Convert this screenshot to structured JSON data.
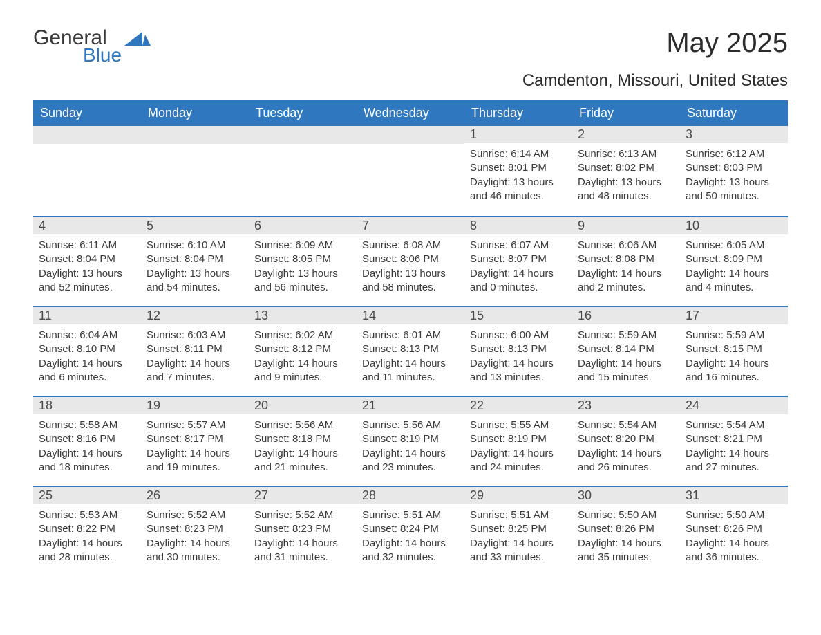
{
  "logo": {
    "general": "General",
    "blue": "Blue",
    "accent_color": "#2f78bf"
  },
  "title": "May 2025",
  "location": "Camdenton, Missouri, United States",
  "colors": {
    "header_bg": "#2f78bf",
    "header_text": "#ffffff",
    "daynum_bg": "#e8e8e8",
    "daynum_text": "#4a4a4a",
    "body_text": "#3a3a3a",
    "week_divider": "#2f78bf",
    "page_bg": "#ffffff"
  },
  "layout": {
    "columns": 7,
    "rows": 5,
    "start_weekday_index": 4
  },
  "weekdays": [
    "Sunday",
    "Monday",
    "Tuesday",
    "Wednesday",
    "Thursday",
    "Friday",
    "Saturday"
  ],
  "typography": {
    "month_title_fontsize": 40,
    "location_fontsize": 24,
    "weekday_fontsize": 18,
    "daynum_fontsize": 18,
    "body_fontsize": 15
  },
  "days": [
    {
      "n": 1,
      "sunrise": "6:14 AM",
      "sunset": "8:01 PM",
      "daylight": "13 hours and 46 minutes."
    },
    {
      "n": 2,
      "sunrise": "6:13 AM",
      "sunset": "8:02 PM",
      "daylight": "13 hours and 48 minutes."
    },
    {
      "n": 3,
      "sunrise": "6:12 AM",
      "sunset": "8:03 PM",
      "daylight": "13 hours and 50 minutes."
    },
    {
      "n": 4,
      "sunrise": "6:11 AM",
      "sunset": "8:04 PM",
      "daylight": "13 hours and 52 minutes."
    },
    {
      "n": 5,
      "sunrise": "6:10 AM",
      "sunset": "8:04 PM",
      "daylight": "13 hours and 54 minutes."
    },
    {
      "n": 6,
      "sunrise": "6:09 AM",
      "sunset": "8:05 PM",
      "daylight": "13 hours and 56 minutes."
    },
    {
      "n": 7,
      "sunrise": "6:08 AM",
      "sunset": "8:06 PM",
      "daylight": "13 hours and 58 minutes."
    },
    {
      "n": 8,
      "sunrise": "6:07 AM",
      "sunset": "8:07 PM",
      "daylight": "14 hours and 0 minutes."
    },
    {
      "n": 9,
      "sunrise": "6:06 AM",
      "sunset": "8:08 PM",
      "daylight": "14 hours and 2 minutes."
    },
    {
      "n": 10,
      "sunrise": "6:05 AM",
      "sunset": "8:09 PM",
      "daylight": "14 hours and 4 minutes."
    },
    {
      "n": 11,
      "sunrise": "6:04 AM",
      "sunset": "8:10 PM",
      "daylight": "14 hours and 6 minutes."
    },
    {
      "n": 12,
      "sunrise": "6:03 AM",
      "sunset": "8:11 PM",
      "daylight": "14 hours and 7 minutes."
    },
    {
      "n": 13,
      "sunrise": "6:02 AM",
      "sunset": "8:12 PM",
      "daylight": "14 hours and 9 minutes."
    },
    {
      "n": 14,
      "sunrise": "6:01 AM",
      "sunset": "8:13 PM",
      "daylight": "14 hours and 11 minutes."
    },
    {
      "n": 15,
      "sunrise": "6:00 AM",
      "sunset": "8:13 PM",
      "daylight": "14 hours and 13 minutes."
    },
    {
      "n": 16,
      "sunrise": "5:59 AM",
      "sunset": "8:14 PM",
      "daylight": "14 hours and 15 minutes."
    },
    {
      "n": 17,
      "sunrise": "5:59 AM",
      "sunset": "8:15 PM",
      "daylight": "14 hours and 16 minutes."
    },
    {
      "n": 18,
      "sunrise": "5:58 AM",
      "sunset": "8:16 PM",
      "daylight": "14 hours and 18 minutes."
    },
    {
      "n": 19,
      "sunrise": "5:57 AM",
      "sunset": "8:17 PM",
      "daylight": "14 hours and 19 minutes."
    },
    {
      "n": 20,
      "sunrise": "5:56 AM",
      "sunset": "8:18 PM",
      "daylight": "14 hours and 21 minutes."
    },
    {
      "n": 21,
      "sunrise": "5:56 AM",
      "sunset": "8:19 PM",
      "daylight": "14 hours and 23 minutes."
    },
    {
      "n": 22,
      "sunrise": "5:55 AM",
      "sunset": "8:19 PM",
      "daylight": "14 hours and 24 minutes."
    },
    {
      "n": 23,
      "sunrise": "5:54 AM",
      "sunset": "8:20 PM",
      "daylight": "14 hours and 26 minutes."
    },
    {
      "n": 24,
      "sunrise": "5:54 AM",
      "sunset": "8:21 PM",
      "daylight": "14 hours and 27 minutes."
    },
    {
      "n": 25,
      "sunrise": "5:53 AM",
      "sunset": "8:22 PM",
      "daylight": "14 hours and 28 minutes."
    },
    {
      "n": 26,
      "sunrise": "5:52 AM",
      "sunset": "8:23 PM",
      "daylight": "14 hours and 30 minutes."
    },
    {
      "n": 27,
      "sunrise": "5:52 AM",
      "sunset": "8:23 PM",
      "daylight": "14 hours and 31 minutes."
    },
    {
      "n": 28,
      "sunrise": "5:51 AM",
      "sunset": "8:24 PM",
      "daylight": "14 hours and 32 minutes."
    },
    {
      "n": 29,
      "sunrise": "5:51 AM",
      "sunset": "8:25 PM",
      "daylight": "14 hours and 33 minutes."
    },
    {
      "n": 30,
      "sunrise": "5:50 AM",
      "sunset": "8:26 PM",
      "daylight": "14 hours and 35 minutes."
    },
    {
      "n": 31,
      "sunrise": "5:50 AM",
      "sunset": "8:26 PM",
      "daylight": "14 hours and 36 minutes."
    }
  ],
  "labels": {
    "sunrise": "Sunrise:",
    "sunset": "Sunset:",
    "daylight": "Daylight:"
  }
}
